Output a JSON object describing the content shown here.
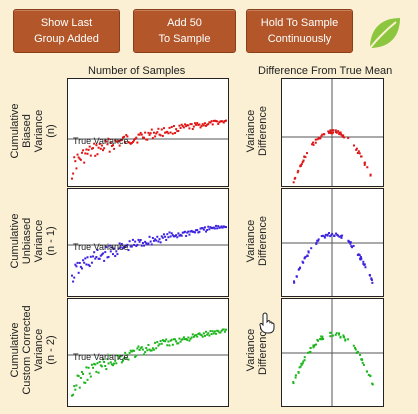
{
  "buttons": {
    "show_last": [
      "Show Last",
      "Group Added"
    ],
    "add_50": [
      "Add 50",
      "To Sample"
    ],
    "hold": [
      "Hold To Sample",
      "Continuously"
    ]
  },
  "headers": {
    "left": "Number of Samples",
    "right": "Difference From True Mean"
  },
  "rows": [
    {
      "label_lines": [
        "Cumulative",
        "Biased",
        "Variance",
        "(n)"
      ],
      "right_label_lines": [
        "Variance",
        "Difference"
      ],
      "true_variance_label": "True Variance",
      "color": "#e01515"
    },
    {
      "label_lines": [
        "Cumulative",
        "Unbiased",
        "Variance",
        "(n - 1)"
      ],
      "right_label_lines": [
        "Variance",
        "Difference"
      ],
      "true_variance_label": "True Variance",
      "color": "#3b22e0"
    },
    {
      "label_lines": [
        "Cumulative",
        "Custom Corrected",
        "Variance",
        "(n - 2)"
      ],
      "right_label_lines": [
        "Variance",
        "Difference"
      ],
      "true_variance_label": "True Variance",
      "color": "#1cb51c"
    }
  ],
  "icons": {
    "logo": "leaf-icon",
    "cursor": "hand-cursor-icon"
  },
  "colors": {
    "button_bg": "#b3572a",
    "background": "#fbf0d4"
  }
}
